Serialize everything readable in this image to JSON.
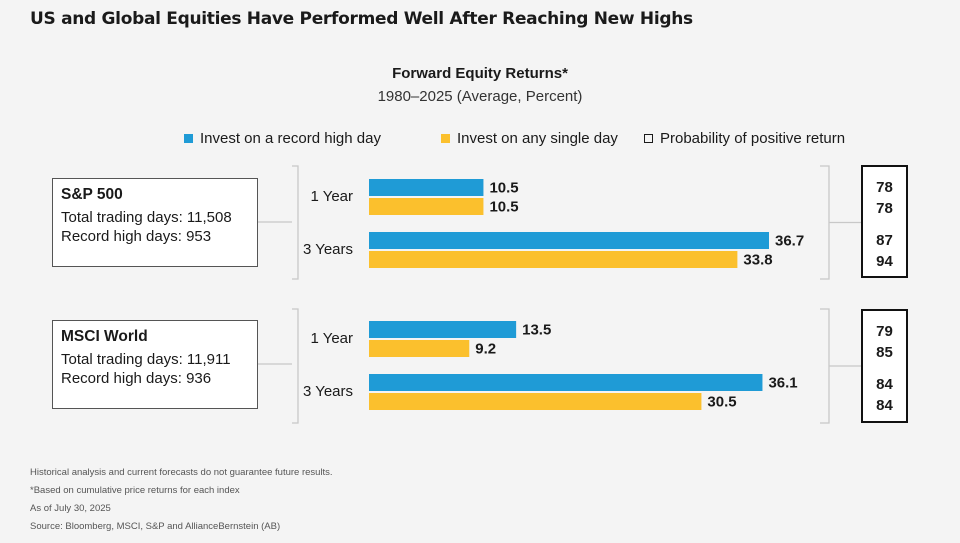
{
  "headline": "US and Global Equities Have Performed Well After Reaching New Highs",
  "colors": {
    "record_high": "#1f9bd6",
    "any_day": "#fbc02d",
    "bracket": "#c8c8c8"
  },
  "chart_data": {
    "type": "bar",
    "orientation": "horizontal",
    "title": "Forward Equity Returns*",
    "subtitle": "1980–2025 (Average, Percent)",
    "legend": {
      "record_high": "Invest on a record high day",
      "any_day": "Invest on any single day",
      "probability": "Probability of positive return"
    },
    "xlim": [
      0,
      40
    ],
    "groups": [
      {
        "name": "S&P 500",
        "total_days": "Total trading days: 11,508",
        "record_days": "Record high days: 953",
        "periods": [
          {
            "label": "1 Year",
            "record_high": 10.5,
            "any_day": 10.5,
            "record_label": "10.5",
            "any_label": "10.5",
            "prob_record": "78",
            "prob_any": "78"
          },
          {
            "label": "3 Years",
            "record_high": 36.7,
            "any_day": 33.8,
            "record_label": "36.7",
            "any_label": "33.8",
            "prob_record": "87",
            "prob_any": "94"
          }
        ]
      },
      {
        "name": "MSCI World",
        "total_days": "Total trading days: 11,911",
        "record_days": "Record high days: 936",
        "periods": [
          {
            "label": "1 Year",
            "record_high": 13.5,
            "any_day": 9.2,
            "record_label": "13.5",
            "any_label": "9.2",
            "prob_record": "79",
            "prob_any": "85"
          },
          {
            "label": "3 Years",
            "record_high": 36.1,
            "any_day": 30.5,
            "record_label": "36.1",
            "any_label": "30.5",
            "prob_record": "84",
            "prob_any": "84"
          }
        ]
      }
    ]
  },
  "footnotes": [
    "Historical analysis and current forecasts do not guarantee future results.",
    "*Based on cumulative price returns for each index",
    "As of July 30, 2025",
    "Source: Bloomberg, MSCI, S&P and AllianceBernstein (AB)"
  ]
}
